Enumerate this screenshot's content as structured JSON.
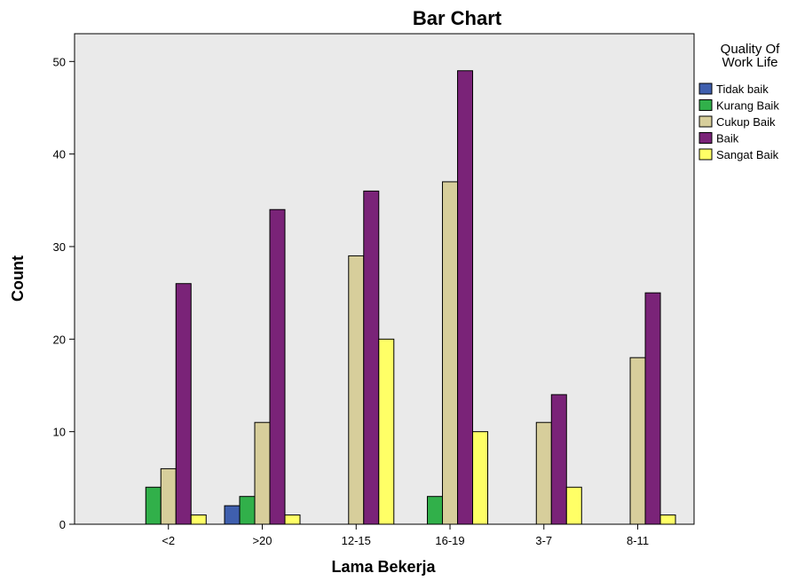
{
  "chart_data": {
    "type": "bar",
    "title": "Bar Chart",
    "xlabel": "Lama Bekerja",
    "ylabel": "Count",
    "categories": [
      "<2",
      ">20",
      "12-15",
      "16-19",
      "3-7",
      "8-11"
    ],
    "ylim": [
      0,
      53
    ],
    "yticks": [
      0,
      10,
      20,
      30,
      40,
      50
    ],
    "legend_title": [
      "Quality Of",
      "Work Life"
    ],
    "legend_position": "right",
    "grid": false,
    "background_color": "#EAEAEA",
    "series": [
      {
        "name": "Tidak baik",
        "color": "#3F5FAE",
        "values": [
          0,
          2,
          0,
          0,
          0,
          0
        ]
      },
      {
        "name": "Kurang Baik",
        "color": "#31B04A",
        "values": [
          4,
          3,
          0,
          3,
          0,
          0
        ]
      },
      {
        "name": "Cukup Baik",
        "color": "#D7CE9B",
        "values": [
          6,
          11,
          29,
          37,
          11,
          18
        ]
      },
      {
        "name": "Baik",
        "color": "#7A2378",
        "values": [
          26,
          34,
          36,
          49,
          14,
          25
        ]
      },
      {
        "name": "Sangat Baik",
        "color": "#FFFF66",
        "values": [
          1,
          1,
          20,
          10,
          4,
          1
        ]
      }
    ]
  }
}
